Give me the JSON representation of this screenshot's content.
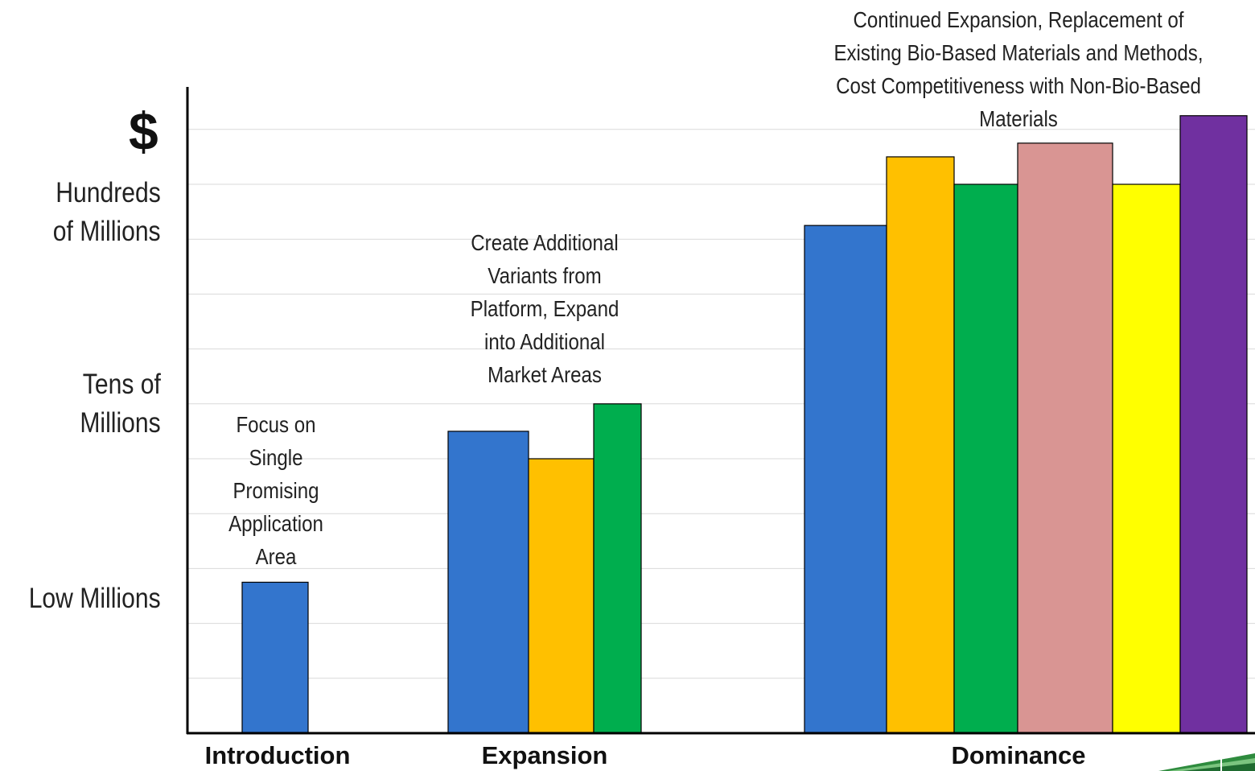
{
  "chart_data": {
    "type": "bar",
    "y_axis_labels": {
      "symbol": "$",
      "hundreds_line1": "Hundreds",
      "hundreds_line2": "of Millions",
      "tens_line1": "Tens of",
      "tens_line2": "Millions",
      "low": "Low Millions"
    },
    "ylim": [
      0,
      11.5
    ],
    "grid": true,
    "categories": [
      "Introduction",
      "Expansion",
      "Dominance"
    ],
    "annotations": {
      "introduction": [
        "Focus on",
        "Single",
        "Promising",
        "Application",
        "Area"
      ],
      "expansion": [
        "Create Additional",
        "Variants from",
        "Platform, Expand",
        "into Additional",
        "Market Areas"
      ],
      "dominance": [
        "Continued Expansion, Replacement of",
        "Existing Bio-Based Materials and Methods,",
        "Cost Competitiveness with Non-Bio-Based",
        "Materials"
      ]
    },
    "groups": [
      {
        "category": "Introduction",
        "bars": [
          {
            "value": 2.75,
            "color": "#3375cd"
          }
        ]
      },
      {
        "category": "Expansion",
        "bars": [
          {
            "value": 5.5,
            "color": "#3375cd"
          },
          {
            "value": 5.0,
            "color": "#ffc000"
          },
          {
            "value": 6.0,
            "color": "#00ae4e"
          }
        ]
      },
      {
        "category": "Dominance",
        "bars": [
          {
            "value": 9.25,
            "color": "#3375cd"
          },
          {
            "value": 10.5,
            "color": "#ffc000"
          },
          {
            "value": 10.0,
            "color": "#00ae4e"
          },
          {
            "value": 10.75,
            "color": "#d99593"
          },
          {
            "value": 10.0,
            "color": "#ffff00"
          },
          {
            "value": 11.25,
            "color": "#7030a0"
          }
        ]
      }
    ]
  },
  "colors": {
    "axis": "#000000",
    "grid": "#d9d9d9",
    "bar_stroke": "#000000"
  }
}
